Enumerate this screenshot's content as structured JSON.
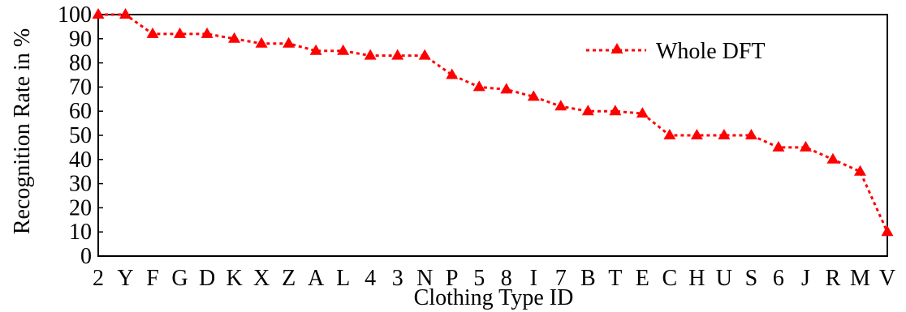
{
  "chart_data": {
    "type": "line",
    "xlabel": "Clothing Type ID",
    "ylabel": "Recognition Rate in %",
    "ylim": [
      0,
      100
    ],
    "yticks": [
      0,
      10,
      20,
      30,
      40,
      50,
      60,
      70,
      80,
      90,
      100
    ],
    "categories": [
      "2",
      "Y",
      "F",
      "G",
      "D",
      "K",
      "X",
      "Z",
      "A",
      "L",
      "4",
      "3",
      "N",
      "P",
      "5",
      "8",
      "I",
      "7",
      "B",
      "T",
      "E",
      "C",
      "H",
      "U",
      "S",
      "6",
      "J",
      "R",
      "M",
      "V"
    ],
    "series": [
      {
        "name": "Whole DFT",
        "values": [
          100,
          100,
          92,
          92,
          92,
          90,
          88,
          88,
          85,
          85,
          83,
          83,
          83,
          75,
          70,
          69,
          66,
          62,
          60,
          60,
          59,
          50,
          50,
          50,
          50,
          45,
          45,
          40,
          35,
          10
        ],
        "color": "#ff0000",
        "line_style": "dotted",
        "marker": "triangle"
      }
    ],
    "legend_position": "top-right",
    "grid": false
  }
}
